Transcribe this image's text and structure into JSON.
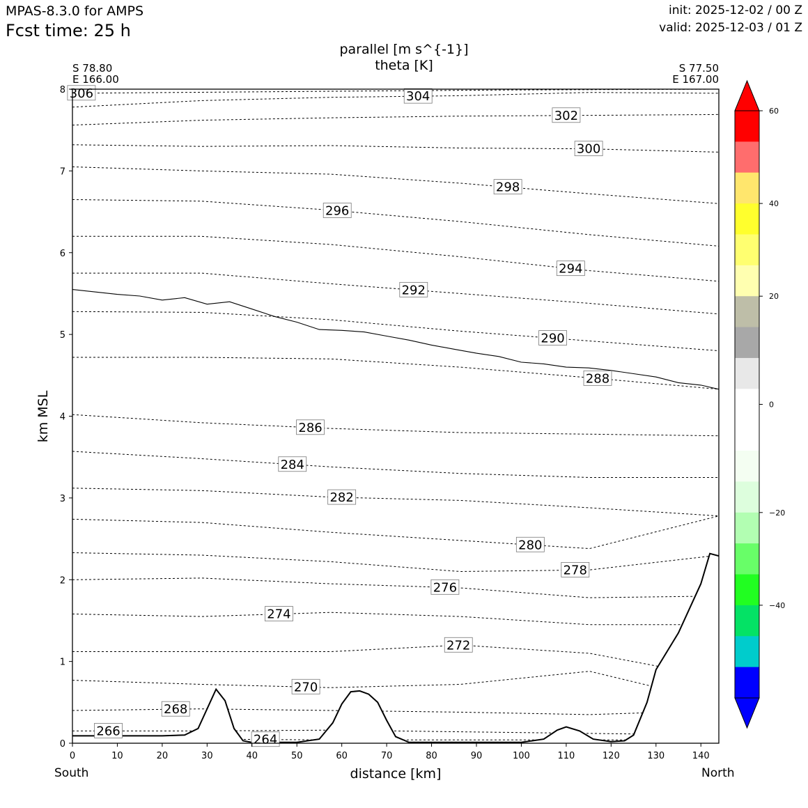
{
  "header": {
    "model": "MPAS-8.3.0 for AMPS",
    "fcst": "Fcst time:   25 h",
    "init": "init: 2025-12-02 / 00 Z",
    "valid": "valid: 2025-12-03 / 01 Z"
  },
  "chart_data": {
    "type": "cross-section",
    "title_lines": [
      "parallel [m s^{-1}]",
      "theta [K]"
    ],
    "xlabel": "distance [km]",
    "ylabel": "km MSL",
    "endpoints": {
      "left": [
        "S 78.80",
        "E 166.00"
      ],
      "right": [
        "S 77.50",
        "E 167.00"
      ],
      "left_label": "South",
      "right_label": "North"
    },
    "xlim": [
      0,
      144
    ],
    "ylim": [
      0,
      8
    ],
    "xticks": [
      0,
      10,
      20,
      30,
      40,
      50,
      60,
      70,
      80,
      90,
      100,
      110,
      120,
      130,
      140
    ],
    "yticks": [
      0,
      1,
      2,
      3,
      4,
      5,
      6,
      7,
      8
    ],
    "theta_contours": [
      {
        "label": "306",
        "y": [
          7.95,
          7.97,
          7.99,
          8.0
        ]
      },
      {
        "label": "304",
        "y": [
          7.78,
          7.86,
          7.9,
          7.92,
          7.96,
          7.95
        ]
      },
      {
        "label": "302",
        "y": [
          7.56,
          7.62,
          7.65,
          7.67,
          7.68,
          7.69
        ]
      },
      {
        "label": "300",
        "y": [
          7.32,
          7.3,
          7.31,
          7.28,
          7.27,
          7.23
        ]
      },
      {
        "label": "298",
        "y": [
          7.05,
          7.0,
          6.96,
          6.85,
          6.72,
          6.6
        ]
      },
      {
        "label": "296",
        "y": [
          6.65,
          6.63,
          6.52,
          6.38,
          6.22,
          6.08
        ]
      },
      {
        "label": "294",
        "y": [
          6.2,
          6.2,
          6.1,
          5.95,
          5.78,
          5.65
        ]
      },
      {
        "label": "292",
        "y": [
          5.75,
          5.75,
          5.62,
          5.5,
          5.38,
          5.25
        ]
      },
      {
        "label": "290",
        "y": [
          5.28,
          5.27,
          5.18,
          5.04,
          4.92,
          4.8
        ]
      },
      {
        "label": "288",
        "y": [
          4.72,
          4.72,
          4.7,
          4.6,
          4.47,
          4.33
        ]
      },
      {
        "label": "286",
        "y": [
          4.02,
          3.92,
          3.85,
          3.8,
          3.78,
          3.76
        ]
      },
      {
        "label": "284",
        "y": [
          3.57,
          3.48,
          3.38,
          3.3,
          3.25,
          3.25
        ]
      },
      {
        "label": "282",
        "y": [
          3.12,
          3.09,
          3.01,
          2.97,
          2.88,
          2.78
        ]
      },
      {
        "label": "280",
        "y": [
          2.74,
          2.7,
          2.58,
          2.48,
          2.38,
          2.78
        ]
      },
      {
        "label": "278",
        "y": [
          2.33,
          2.3,
          2.22,
          2.1,
          2.12,
          2.3
        ]
      },
      {
        "label": "276",
        "y": [
          2.0,
          2.02,
          1.95,
          1.9,
          1.78,
          1.8
        ]
      },
      {
        "label": "274",
        "y": [
          1.58,
          1.55,
          1.6,
          1.55,
          1.45,
          1.45
        ]
      },
      {
        "label": "272",
        "y": [
          1.12,
          1.12,
          1.12,
          1.2,
          1.1,
          0.8
        ]
      },
      {
        "label": "270",
        "y": [
          0.77,
          0.72,
          0.68,
          0.72,
          0.88,
          0.5
        ]
      },
      {
        "label": "268",
        "y": [
          0.4,
          0.42,
          0.4,
          0.38,
          0.35,
          0.4
        ]
      },
      {
        "label": "266",
        "y": [
          0.15,
          0.15,
          0.16,
          0.14,
          0.12,
          0.1
        ]
      },
      {
        "label": "264",
        "y": [
          0.08,
          0.05,
          0.04,
          0.04,
          0.04,
          0.04
        ]
      }
    ],
    "wind_zero_contour": {
      "x": [
        0,
        5,
        10,
        15,
        20,
        25,
        30,
        35,
        40,
        45,
        50,
        55,
        60,
        65,
        70,
        75,
        80,
        85,
        90,
        95,
        100,
        105,
        110,
        115,
        120,
        125,
        130,
        135,
        140,
        144
      ],
      "y": [
        5.55,
        5.52,
        5.49,
        5.47,
        5.42,
        5.45,
        5.37,
        5.4,
        5.31,
        5.22,
        5.15,
        5.06,
        5.05,
        5.03,
        4.98,
        4.93,
        4.87,
        4.82,
        4.77,
        4.73,
        4.66,
        4.64,
        4.6,
        4.59,
        4.56,
        4.52,
        4.48,
        4.41,
        4.38,
        4.33
      ]
    },
    "terrain": {
      "x": [
        0,
        10,
        20,
        25,
        28,
        30,
        32,
        34,
        36,
        38,
        40,
        45,
        50,
        55,
        58,
        60,
        62,
        64,
        66,
        68,
        70,
        72,
        75,
        80,
        90,
        100,
        105,
        108,
        110,
        113,
        116,
        120,
        123,
        125,
        128,
        130,
        135,
        140,
        142,
        144
      ],
      "y": [
        0.09,
        0.09,
        0.09,
        0.1,
        0.18,
        0.42,
        0.66,
        0.52,
        0.18,
        0.03,
        0.01,
        0.01,
        0.01,
        0.05,
        0.25,
        0.48,
        0.63,
        0.64,
        0.6,
        0.5,
        0.28,
        0.08,
        0.01,
        0.01,
        0.01,
        0.01,
        0.05,
        0.16,
        0.2,
        0.15,
        0.05,
        0.02,
        0.03,
        0.1,
        0.5,
        0.9,
        1.35,
        1.95,
        2.32,
        2.29
      ]
    },
    "colorbar": {
      "ticks": [
        "60",
        "40",
        "20",
        "0",
        "−20",
        "−40"
      ],
      "colors": [
        "#ff0000",
        "#ff6d6d",
        "#ffe66d",
        "#ffff2d",
        "#ffff70",
        "#ffffb0",
        "#bebea8",
        "#a8a8a8",
        "#e8e8e8",
        "#ffffff",
        "#ffffff",
        "#f4fef2",
        "#ddfedd",
        "#b2feb2",
        "#68fe68",
        "#21fe21",
        "#04e265",
        "#00cccc",
        "#0000ff"
      ],
      "top_color": "#ff0000",
      "bottom_color": "#0000ff"
    }
  }
}
